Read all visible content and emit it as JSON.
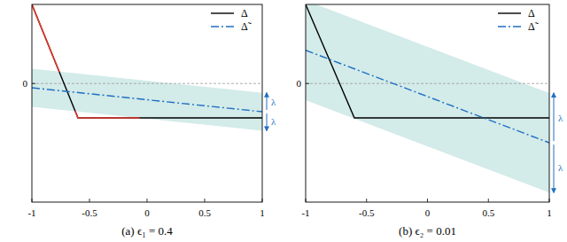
{
  "chart_data": [
    {
      "type": "line",
      "title": "(a) ϵ₁ = 0.4",
      "xlim": [
        -1,
        1
      ],
      "xticks": [
        -1,
        -0.5,
        0,
        0.5,
        1
      ],
      "ylim": [
        -1.5,
        1
      ],
      "yticks": [
        0
      ],
      "grid": true,
      "legend": "upper right",
      "series": [
        {
          "name": "Δ",
          "color": "#000000",
          "line_style": "solid",
          "x": [
            -1,
            -0.6,
            1
          ],
          "values": [
            1,
            -0.435,
            -0.435
          ]
        },
        {
          "name": "Δ̃",
          "color": "#1f6fc4",
          "line_style": "dashdot",
          "x": [
            -1,
            1
          ],
          "values": [
            -0.054,
            -0.357
          ],
          "band": 0.24,
          "band_label": "λ"
        }
      ]
    },
    {
      "type": "line",
      "title": "(b) ϵ₂ = 0.01",
      "xlim": [
        -1,
        1
      ],
      "xticks": [
        -1,
        -0.5,
        0,
        0.5,
        1
      ],
      "ylim": [
        -1.5,
        1
      ],
      "yticks": [
        0
      ],
      "grid": true,
      "legend": "upper right",
      "series": [
        {
          "name": "Δ",
          "color": "#000000",
          "line_style": "solid",
          "x": [
            -1,
            -0.6,
            1
          ],
          "values": [
            1,
            -0.435,
            -0.435
          ]
        },
        {
          "name": "Δ̃",
          "color": "#1f6fc4",
          "line_style": "dashdot",
          "x": [
            -1,
            1
          ],
          "values": [
            0.42,
            -0.75
          ],
          "band": 0.63,
          "band_label": "λ"
        }
      ]
    }
  ]
}
